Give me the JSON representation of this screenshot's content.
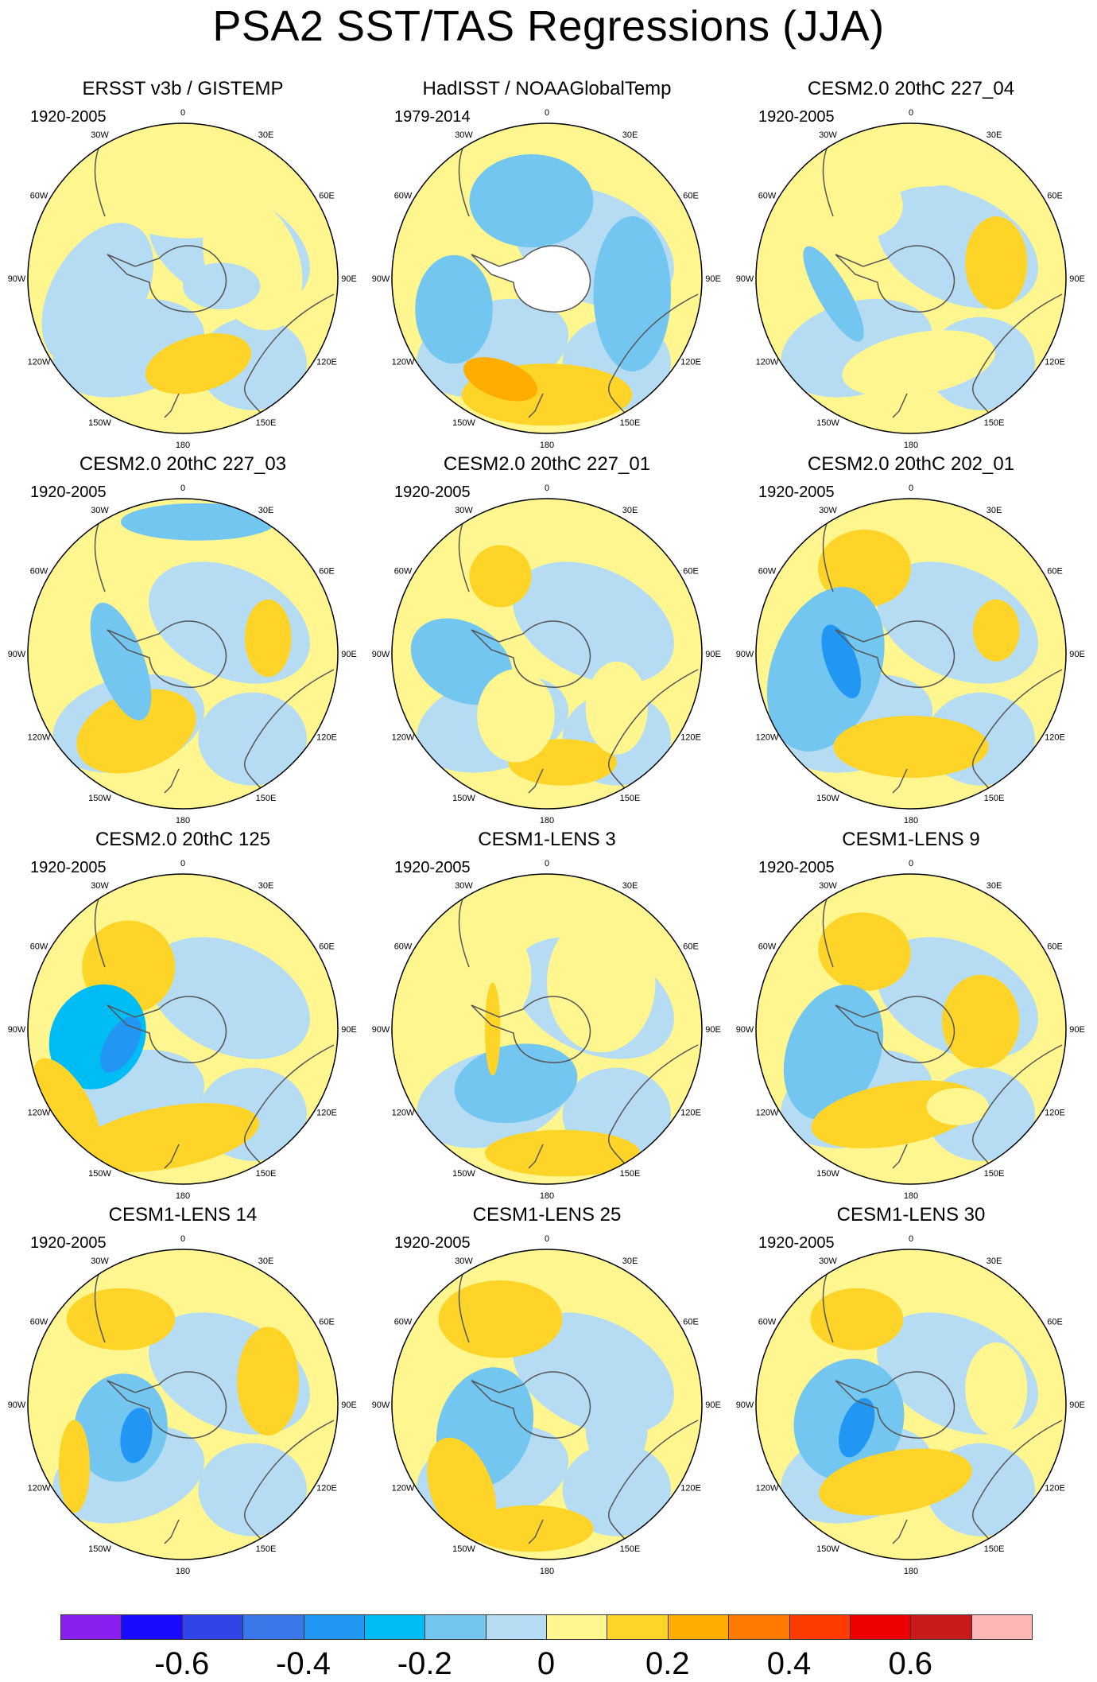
{
  "title": "PSA2 SST/TAS Regressions (JJA)",
  "longitude_labels": [
    "0",
    "30E",
    "60E",
    "90E",
    "120E",
    "150E",
    "180",
    "150W",
    "120W",
    "90W",
    "60W",
    "30W"
  ],
  "panels": [
    {
      "title": "ERSST v3b / GISTEMP",
      "period": "1920-2005"
    },
    {
      "title": "HadISST / NOAAGlobalTemp",
      "period": "1979-2014"
    },
    {
      "title": "CESM2.0 20thC 227_04",
      "period": "1920-2005"
    },
    {
      "title": "CESM2.0 20thC 227_03",
      "period": "1920-2005"
    },
    {
      "title": "CESM2.0 20thC 227_01",
      "period": "1920-2005"
    },
    {
      "title": "CESM2.0 20thC 202_01",
      "period": "1920-2005"
    },
    {
      "title": "CESM2.0 20thC 125",
      "period": "1920-2005"
    },
    {
      "title": "CESM1-LENS 3",
      "period": "1920-2005"
    },
    {
      "title": "CESM1-LENS 9",
      "period": "1920-2005"
    },
    {
      "title": "CESM1-LENS 14",
      "period": "1920-2005"
    },
    {
      "title": "CESM1-LENS 25",
      "period": "1920-2005"
    },
    {
      "title": "CESM1-LENS 30",
      "period": "1920-2005"
    }
  ],
  "colorbar": {
    "colors": [
      "#8a1ff0",
      "#1a0aff",
      "#2f45e8",
      "#3a78ea",
      "#2196f3",
      "#00bcf5",
      "#73c6f0",
      "#b5dcf2",
      "#fff68f",
      "#ffd428",
      "#ffad00",
      "#ff7a00",
      "#ff3b00",
      "#ee0000",
      "#c81a1a",
      "#ffb6b6"
    ],
    "labels": [
      "-0.6",
      "-0.4",
      "-0.2",
      "0",
      "0.2",
      "0.4",
      "0.6"
    ]
  }
}
